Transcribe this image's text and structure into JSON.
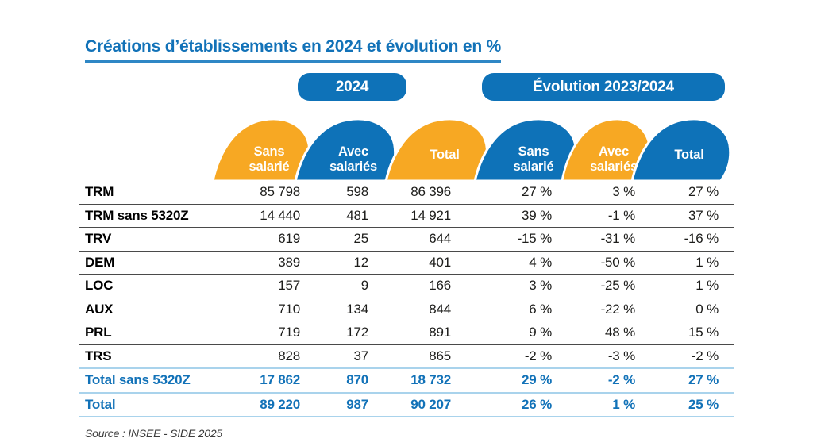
{
  "title": "Créations d’établissements en 2024 et évolution en %",
  "group_headers": {
    "year": "2024",
    "evolution": "Évolution 2023/2024"
  },
  "columns": [
    {
      "id": "sans-salarie-2024",
      "lines": [
        "Sans",
        "salarié"
      ],
      "color": "orange"
    },
    {
      "id": "avec-salaries-2024",
      "lines": [
        "Avec",
        "salariés"
      ],
      "color": "blue"
    },
    {
      "id": "total-2024",
      "lines": [
        "Total"
      ],
      "color": "orange"
    },
    {
      "id": "sans-salarie-evol",
      "lines": [
        "Sans",
        "salarié"
      ],
      "color": "blue"
    },
    {
      "id": "avec-salaries-evol",
      "lines": [
        "Avec",
        "salariés"
      ],
      "color": "orange"
    },
    {
      "id": "total-evol",
      "lines": [
        "Total"
      ],
      "color": "blue"
    }
  ],
  "rows": [
    {
      "label": "TRM",
      "values": [
        "85 798",
        "598",
        "86 396",
        "27 %",
        "3 %",
        "27 %"
      ],
      "style": "normal",
      "divider": "dark"
    },
    {
      "label": "TRM sans 5320Z",
      "values": [
        "14 440",
        "481",
        "14 921",
        "39 %",
        "-1 %",
        "37 %"
      ],
      "style": "normal",
      "divider": "dark"
    },
    {
      "label": "TRV",
      "values": [
        "619",
        "25",
        "644",
        "-15 %",
        "-31 %",
        "-16 %"
      ],
      "style": "normal",
      "divider": "dark"
    },
    {
      "label": "DEM",
      "values": [
        "389",
        "12",
        "401",
        "4 %",
        "-50 %",
        "1 %"
      ],
      "style": "normal",
      "divider": "dark"
    },
    {
      "label": "LOC",
      "values": [
        "157",
        "9",
        "166",
        "3 %",
        "-25 %",
        "1 %"
      ],
      "style": "normal",
      "divider": "dark"
    },
    {
      "label": "AUX",
      "values": [
        "710",
        "134",
        "844",
        "6 %",
        "-22 %",
        "0 %"
      ],
      "style": "normal",
      "divider": "dark"
    },
    {
      "label": "PRL",
      "values": [
        "719",
        "172",
        "891",
        "9 %",
        "48 %",
        "15 %"
      ],
      "style": "normal",
      "divider": "dark"
    },
    {
      "label": "TRS",
      "values": [
        "828",
        "37",
        "865",
        "-2 %",
        "-3 %",
        "-2 %"
      ],
      "style": "normal",
      "divider": "blue"
    },
    {
      "label": "Total sans 5320Z",
      "values": [
        "17 862",
        "870",
        "18 732",
        "29 %",
        "-2 %",
        "27 %"
      ],
      "style": "total",
      "divider": "blue"
    },
    {
      "label": "Total",
      "values": [
        "89 220",
        "987",
        "90 207",
        "26 %",
        "1 %",
        "25 %"
      ],
      "style": "total",
      "divider": "blue"
    }
  ],
  "chart_data": {
    "type": "table",
    "title": "Créations d’établissements en 2024 et évolution en %",
    "column_groups": [
      "2024",
      "Évolution 2023/2024"
    ],
    "columns": [
      "Sans salarié",
      "Avec salariés",
      "Total",
      "Sans salarié",
      "Avec salariés",
      "Total"
    ],
    "row_labels": [
      "TRM",
      "TRM sans 5320Z",
      "TRV",
      "DEM",
      "LOC",
      "AUX",
      "PRL",
      "TRS",
      "Total sans 5320Z",
      "Total"
    ],
    "values_2024": [
      [
        85798,
        598,
        86396
      ],
      [
        14440,
        481,
        14921
      ],
      [
        619,
        25,
        644
      ],
      [
        389,
        12,
        401
      ],
      [
        157,
        9,
        166
      ],
      [
        710,
        134,
        844
      ],
      [
        719,
        172,
        891
      ],
      [
        828,
        37,
        865
      ],
      [
        17862,
        870,
        18732
      ],
      [
        89220,
        987,
        90207
      ]
    ],
    "evolution_pct": [
      [
        27,
        3,
        27
      ],
      [
        39,
        -1,
        37
      ],
      [
        -15,
        -31,
        -16
      ],
      [
        4,
        -50,
        1
      ],
      [
        3,
        -25,
        1
      ],
      [
        6,
        -22,
        0
      ],
      [
        9,
        48,
        15
      ],
      [
        -2,
        -3,
        -2
      ],
      [
        29,
        -2,
        27
      ],
      [
        26,
        1,
        25
      ]
    ]
  },
  "source": "Source : INSEE - SIDE 2025",
  "colors": {
    "blue": "#0e72b8",
    "orange": "#f7a823",
    "title_blue": "#1272b8",
    "divider_dark": "#4a4a4a",
    "divider_light_blue": "#a9d3ec"
  }
}
